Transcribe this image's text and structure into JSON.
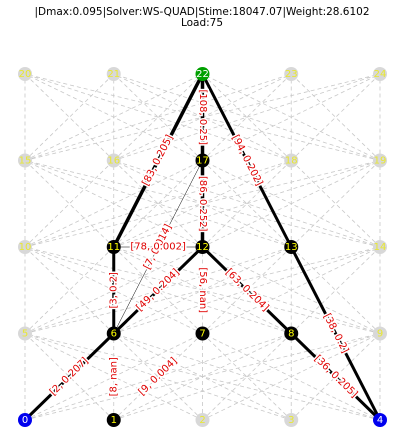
{
  "header": {
    "line1": "|Dmax:0.095|Solver:WS-QUAD|Stime:18047.07|Weight:28.6102",
    "line2": "Load:75"
  },
  "colors": {
    "grid_line": "#c8c8c8",
    "path_line": "#000000",
    "edge_text": "#e00000",
    "node_inactive": "#d8d8d8",
    "node_inactive_text": "#e8e830",
    "node_active": "#000000",
    "node_active_text": "#ffff00",
    "node_source": "#0000ee",
    "node_source_text": "#ffffff",
    "node_sink": "#0000ee",
    "node_top": "#00a000"
  },
  "graph": {
    "columns": 5,
    "rows": 5,
    "nodes": [
      {
        "id": 0,
        "label": "0",
        "col": 0,
        "row": 0,
        "state": "source"
      },
      {
        "id": 1,
        "label": "1",
        "col": 1,
        "row": 0,
        "state": "active"
      },
      {
        "id": 2,
        "label": "2",
        "col": 2,
        "row": 0,
        "state": "inactive"
      },
      {
        "id": 3,
        "label": "3",
        "col": 3,
        "row": 0,
        "state": "inactive"
      },
      {
        "id": 4,
        "label": "4",
        "col": 4,
        "row": 0,
        "state": "sink"
      },
      {
        "id": 5,
        "label": "5",
        "col": 0,
        "row": 1,
        "state": "inactive"
      },
      {
        "id": 6,
        "label": "6",
        "col": 1,
        "row": 1,
        "state": "active"
      },
      {
        "id": 7,
        "label": "7",
        "col": 2,
        "row": 1,
        "state": "active"
      },
      {
        "id": 8,
        "label": "8",
        "col": 3,
        "row": 1,
        "state": "active"
      },
      {
        "id": 9,
        "label": "9",
        "col": 4,
        "row": 1,
        "state": "inactive"
      },
      {
        "id": 10,
        "label": "10",
        "col": 0,
        "row": 2,
        "state": "inactive"
      },
      {
        "id": 11,
        "label": "11",
        "col": 1,
        "row": 2,
        "state": "active"
      },
      {
        "id": 12,
        "label": "12",
        "col": 2,
        "row": 2,
        "state": "active"
      },
      {
        "id": 13,
        "label": "13",
        "col": 3,
        "row": 2,
        "state": "active"
      },
      {
        "id": 14,
        "label": "14",
        "col": 4,
        "row": 2,
        "state": "inactive"
      },
      {
        "id": 15,
        "label": "15",
        "col": 0,
        "row": 3,
        "state": "inactive"
      },
      {
        "id": 16,
        "label": "16",
        "col": 1,
        "row": 3,
        "state": "inactive"
      },
      {
        "id": 17,
        "label": "17",
        "col": 2,
        "row": 3,
        "state": "active"
      },
      {
        "id": 18,
        "label": "18",
        "col": 3,
        "row": 3,
        "state": "inactive"
      },
      {
        "id": 19,
        "label": "19",
        "col": 4,
        "row": 3,
        "state": "inactive"
      },
      {
        "id": 20,
        "label": "20",
        "col": 0,
        "row": 4,
        "state": "inactive"
      },
      {
        "id": 21,
        "label": "21",
        "col": 1,
        "row": 4,
        "state": "inactive"
      },
      {
        "id": 22,
        "label": "22",
        "col": 2,
        "row": 4,
        "state": "top"
      },
      {
        "id": 23,
        "label": "23",
        "col": 3,
        "row": 4,
        "state": "inactive"
      },
      {
        "id": 24,
        "label": "24",
        "col": 4,
        "row": 4,
        "state": "inactive"
      }
    ],
    "path_edges": [
      {
        "from": 0,
        "to": 6,
        "width": 3
      },
      {
        "from": 6,
        "to": 11,
        "width": 3
      },
      {
        "from": 11,
        "to": 22,
        "width": 3.5
      },
      {
        "from": 22,
        "to": 17,
        "width": 3.5
      },
      {
        "from": 17,
        "to": 12,
        "width": 3.5
      },
      {
        "from": 6,
        "to": 12,
        "width": 3
      },
      {
        "from": 12,
        "to": 8,
        "width": 3
      },
      {
        "from": 22,
        "to": 13,
        "width": 3
      },
      {
        "from": 13,
        "to": 4,
        "width": 3
      },
      {
        "from": 8,
        "to": 4,
        "width": 3
      },
      {
        "from": 11,
        "to": 12,
        "width": 0.5
      },
      {
        "from": 6,
        "to": 17,
        "width": 0.5
      }
    ],
    "edge_labels": [
      {
        "from": 0,
        "to": 6,
        "text": "[2, 0.207]"
      },
      {
        "from": 6,
        "to": 11,
        "text": "[3, 0.2]"
      },
      {
        "from": 11,
        "to": 22,
        "text": "[83, 0.205]"
      },
      {
        "from": 22,
        "to": 17,
        "text": "[108, 0.25]"
      },
      {
        "from": 22,
        "to": 13,
        "text": "[94, 0.202]"
      },
      {
        "from": 17,
        "to": 12,
        "text": "[86, 0.252]"
      },
      {
        "from": 6,
        "to": 17,
        "text": "[7, 0.014]"
      },
      {
        "from": 11,
        "to": 12,
        "text": "[78, 0.002]"
      },
      {
        "from": 6,
        "to": 12,
        "text": "[49, 0.204]"
      },
      {
        "from": 12,
        "to": 7,
        "text": "[56, nan]"
      },
      {
        "from": 12,
        "to": 8,
        "text": "[63, 0.204]"
      },
      {
        "from": 13,
        "to": 4,
        "text": "[38, 0.2]"
      },
      {
        "from": 8,
        "to": 4,
        "text": "[36, 0.205]"
      },
      {
        "from": 1,
        "to": 6,
        "text": "[8, nan]"
      },
      {
        "from": 1,
        "to": 7,
        "text": "[9, 0.004]"
      }
    ]
  }
}
